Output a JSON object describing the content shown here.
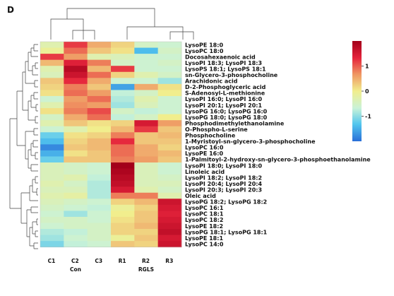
{
  "panel_label": "D",
  "chart_data": {
    "type": "heatmap",
    "columns": [
      "C1",
      "C2",
      "C3",
      "R1",
      "R2",
      "R3"
    ],
    "groups": [
      {
        "name": "Con",
        "columns": [
          "C1",
          "C2",
          "C3"
        ]
      },
      {
        "name": "RGLS",
        "columns": [
          "R1",
          "R2",
          "R3"
        ]
      }
    ],
    "rows": [
      "LysoPE 18:0",
      "LysoPC 18:0",
      "Docosahexaenoic acid",
      "LysoPI 18:3; LysoPI 18:3",
      "LysoPS 18:1; LysoPS 18:1",
      "sn-Glycero-3-phosphocholine",
      "Arachidonic acid",
      "D-2-Phosphoglyceric acid",
      "S-Adenosyl-L-methionine",
      "LysoPI 16:0; LysoPI 16:0",
      "LysoPI 20:1; LysoPI 20:1",
      "LysoPG 16:0; LysoPG 16:0",
      "LysoPG 18:0; LysoPG 18:0",
      "Phosphodimethylethanolamine",
      "O-Phospho-L-serine",
      "Phosphocholine",
      "1-Myristoyl-sn-glycero-3-phosphocholine",
      "LysoPC 16:0",
      "LysoPE 16:0",
      "1-Palmitoyl-2-hydroxy-sn-glycero-3-phosphoethanolamine",
      "LysoPI 18:0; LysoPI 18:0",
      "Linoleic acid",
      "LysoPI 18:2; LysoPI 18:2",
      "LysoPI 20:4; LysoPI 20:4",
      "LysoPI 20:3; LysoPI 20:3",
      "Oleic acid",
      "LysoPG 18:2; LysoPG 18:2",
      "LysoPC 16:1",
      "LysoPC 18:1",
      "LysoPC 18:2",
      "LysoPE 18:2",
      "LysoPG 18:1; LysoPG 18:1",
      "LysoPE 18:1",
      "LysoPC 14:0"
    ],
    "values": [
      [
        -0.3,
        1.2,
        0.5,
        0.2,
        -0.5,
        -0.6
      ],
      [
        -0.1,
        0.9,
        0.3,
        0.1,
        -1.4,
        -0.5
      ],
      [
        1.2,
        0.6,
        -0.3,
        -0.4,
        -0.6,
        -0.6
      ],
      [
        0.4,
        1.4,
        0.8,
        -0.5,
        -0.6,
        -0.5
      ],
      [
        -0.3,
        1.8,
        0.4,
        1.2,
        -0.6,
        -0.6
      ],
      [
        -0.4,
        1.6,
        0.9,
        0.2,
        -0.3,
        -0.5
      ],
      [
        0.3,
        1.3,
        0.5,
        -0.6,
        -0.6,
        -0.9
      ],
      [
        0.2,
        0.8,
        0.3,
        -1.6,
        0.5,
        0.1
      ],
      [
        0.1,
        0.9,
        0.6,
        -0.7,
        -0.5,
        0.0
      ],
      [
        -0.6,
        0.6,
        0.9,
        -0.8,
        -0.3,
        -0.6
      ],
      [
        -0.3,
        0.7,
        0.6,
        -0.9,
        -0.4,
        -0.6
      ],
      [
        0.1,
        0.8,
        1.1,
        -0.5,
        -0.7,
        -0.6
      ],
      [
        -0.5,
        0.5,
        0.9,
        -0.7,
        -0.5,
        0.0
      ],
      [
        -0.3,
        0.3,
        0.1,
        0.2,
        1.5,
        0.6
      ],
      [
        -0.6,
        -0.3,
        0.0,
        0.4,
        1.2,
        0.3
      ],
      [
        -1.2,
        0.1,
        0.2,
        0.8,
        0.3,
        0.4
      ],
      [
        -1.4,
        0.2,
        0.4,
        1.3,
        0.3,
        0.3
      ],
      [
        -1.8,
        0.3,
        0.4,
        0.9,
        0.5,
        0.2
      ],
      [
        -1.5,
        0.1,
        0.3,
        0.9,
        0.5,
        0.4
      ],
      [
        -1.2,
        0.3,
        0.3,
        0.8,
        0.6,
        0.3
      ],
      [
        -0.4,
        -0.5,
        -0.6,
        2.0,
        -0.4,
        -0.6
      ],
      [
        -0.4,
        -0.5,
        -0.6,
        1.9,
        -0.4,
        -0.6
      ],
      [
        -0.4,
        -0.3,
        -0.7,
        1.8,
        -0.4,
        -0.5
      ],
      [
        -0.3,
        -0.5,
        -0.8,
        1.7,
        -0.4,
        -0.4
      ],
      [
        -0.4,
        -0.4,
        -0.8,
        1.5,
        -0.3,
        -0.5
      ],
      [
        -0.3,
        -0.2,
        -0.8,
        0.8,
        0.8,
        -0.3
      ],
      [
        -0.4,
        -0.5,
        -0.6,
        0.2,
        0.4,
        1.6
      ],
      [
        -0.5,
        -0.6,
        -0.7,
        -0.1,
        0.2,
        1.5
      ],
      [
        -0.6,
        -0.9,
        -0.6,
        0.0,
        0.3,
        1.4
      ],
      [
        -0.5,
        -0.5,
        -0.6,
        0.1,
        0.3,
        1.5
      ],
      [
        -0.6,
        -0.5,
        -0.5,
        0.2,
        0.4,
        1.6
      ],
      [
        -0.8,
        -0.7,
        -0.5,
        0.2,
        0.2,
        1.7
      ],
      [
        -0.9,
        -0.6,
        -0.5,
        -0.1,
        0.3,
        1.5
      ],
      [
        -1.1,
        -0.7,
        -0.6,
        0.3,
        0.2,
        1.6
      ]
    ],
    "color_scale": {
      "min": -2,
      "max": 2,
      "stops": [
        "#2a6fd8",
        "#52c6ee",
        "#c9f2d8",
        "#f1ee8d",
        "#ef9562",
        "#e5233b",
        "#a3001a"
      ],
      "ticks": [
        1,
        0,
        -1
      ],
      "tick_labels": [
        "1",
        "0",
        "-1"
      ]
    },
    "legend_placement": "right",
    "row_dendrogram": true,
    "column_dendrogram": true,
    "grid": false
  }
}
